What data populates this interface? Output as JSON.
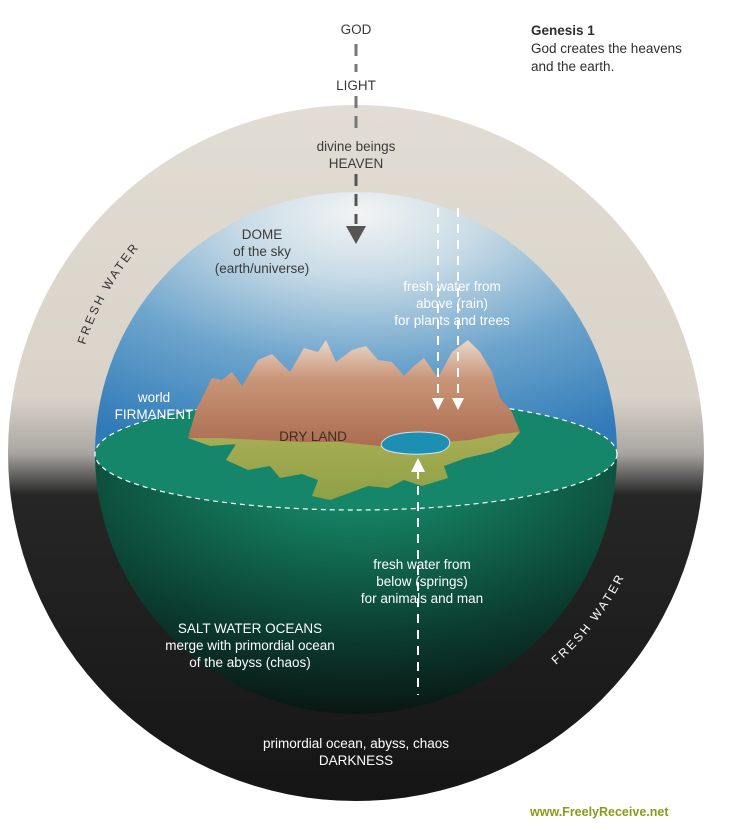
{
  "caption": {
    "title": "Genesis 1",
    "line1": "God creates the heavens",
    "line2": "and the earth."
  },
  "top": {
    "god": "GOD",
    "light": "LIGHT"
  },
  "heaven": {
    "line1": "divine beings",
    "line2": "HEAVEN"
  },
  "dome": {
    "line1": "DOME",
    "line2": "of the sky",
    "line3": "(earth/universe)"
  },
  "rain": {
    "line1": "fresh water from",
    "line2": "above (rain)",
    "line3": "for plants and trees"
  },
  "firmament": {
    "line1": "world",
    "line2": "FIRMANENT"
  },
  "land": {
    "label": "DRY LAND"
  },
  "springs": {
    "line1": "fresh water from",
    "line2": "below (springs)",
    "line3": "for animals and man"
  },
  "oceans": {
    "line1": "SALT WATER OCEANS",
    "line2": "merge with primordial ocean",
    "line3": "of the abyss (chaos)"
  },
  "abyss": {
    "line1": "primordial ocean, abyss, chaos",
    "line2": "DARKNESS"
  },
  "ring": {
    "left": "FRESH WATER",
    "right": "FRESH WATER"
  },
  "credit": "www.FreelyReceive.net",
  "colors": {
    "ring_top": "#dcd6cc",
    "sky": "#3e86c2",
    "sea": "#177b62",
    "land": "#b5785a",
    "lowland": "#9aa84a",
    "abyss": "#141414",
    "credit": "#8a9b1c"
  }
}
